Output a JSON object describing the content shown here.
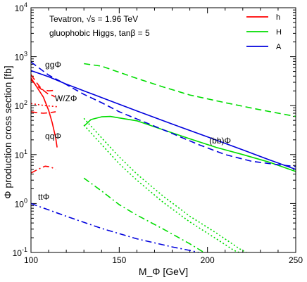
{
  "chart_data": {
    "type": "line",
    "title": "",
    "xlabel": "M_Φ [GeV]",
    "ylabel": "Φ production cross section [fb]",
    "xlim": [
      100,
      250
    ],
    "ylim": [
      0.1,
      10000
    ],
    "yscale": "log",
    "xticks": [
      100,
      150,
      200,
      250
    ],
    "yticks": [
      {
        "value": 0.1,
        "base": "10",
        "exp": "-1"
      },
      {
        "value": 1,
        "base": "10",
        "exp": "0"
      },
      {
        "value": 10,
        "base": "10",
        "exp": "1"
      },
      {
        "value": 100,
        "base": "10",
        "exp": "2"
      },
      {
        "value": 1000,
        "base": "10",
        "exp": "3"
      },
      {
        "value": 10000,
        "base": "10",
        "exp": "4"
      }
    ],
    "header_lines": [
      "Tevatron, √s = 1.96 TeV",
      "gluophobic Higgs, tanβ = 5"
    ],
    "legend": [
      {
        "label": "h",
        "color": "#ff0000"
      },
      {
        "label": "H",
        "color": "#00dd00"
      },
      {
        "label": "A",
        "color": "#0000dd"
      }
    ],
    "annotations": [
      {
        "text": "ggΦ",
        "x": 108,
        "y": 600
      },
      {
        "text": "W/ZΦ",
        "x": 113.5,
        "y": 123
      },
      {
        "text": "qqΦ",
        "x": 108,
        "y": 21
      },
      {
        "text": "(bb)Φ",
        "x": 201,
        "y": 17
      },
      {
        "text": "ttΦ",
        "x": 104,
        "y": 1.2
      }
    ],
    "series": [
      {
        "process": "ggΦ",
        "higgs": "h",
        "color": "#ff0000",
        "dash": "dash",
        "points": [
          [
            100,
            430
          ],
          [
            103,
            300
          ],
          [
            106,
            220
          ],
          [
            110,
            170
          ],
          [
            112.5,
            160
          ],
          [
            113.5,
            150
          ]
        ]
      },
      {
        "process": "ggΦ",
        "higgs": "h",
        "color": "#ff0000",
        "dash": "dash",
        "points": [
          [
            100,
            340
          ],
          [
            103,
            260
          ],
          [
            106,
            215
          ],
          [
            110,
            200
          ],
          [
            113.5,
            205
          ]
        ]
      },
      {
        "process": "W/ZΦ",
        "higgs": "h",
        "color": "#ff0000",
        "dash": "dot",
        "points": [
          [
            100,
            110
          ],
          [
            104,
            105
          ],
          [
            108,
            100
          ],
          [
            112,
            97
          ],
          [
            115,
            95
          ]
        ]
      },
      {
        "process": "W/ZΦ",
        "higgs": "h",
        "color": "#ff0000",
        "dash": "dash",
        "points": [
          [
            100,
            75
          ],
          [
            103,
            72
          ],
          [
            107,
            70
          ],
          [
            111,
            72
          ],
          [
            114,
            75
          ]
        ]
      },
      {
        "process": "qqΦ",
        "higgs": "h",
        "color": "#ff0000",
        "dash": "solid",
        "points": [
          [
            100,
            370
          ],
          [
            103,
            250
          ],
          [
            107,
            150
          ],
          [
            110,
            80
          ],
          [
            112,
            45
          ],
          [
            114,
            22
          ],
          [
            114.8,
            14
          ]
        ]
      },
      {
        "process": "qqΦ",
        "higgs": "h",
        "color": "#ff0000",
        "dash": "dashdot",
        "points": [
          [
            100,
            4.2
          ],
          [
            104,
            5.0
          ],
          [
            108,
            5.8
          ],
          [
            111,
            5.6
          ],
          [
            114,
            5.0
          ]
        ]
      },
      {
        "process": "ggΦ",
        "higgs": "H",
        "color": "#00dd00",
        "dash": "dash",
        "points": [
          [
            130,
            720
          ],
          [
            140,
            640
          ],
          [
            150,
            480
          ],
          [
            160,
            360
          ],
          [
            175,
            240
          ],
          [
            190,
            165
          ],
          [
            210,
            115
          ],
          [
            230,
            82
          ],
          [
            250,
            60
          ]
        ]
      },
      {
        "process": "(bb)Φ",
        "higgs": "H",
        "color": "#00dd00",
        "dash": "solid",
        "points": [
          [
            130,
            38
          ],
          [
            134,
            52
          ],
          [
            140,
            59
          ],
          [
            145,
            60
          ],
          [
            150,
            56
          ],
          [
            160,
            49
          ],
          [
            175,
            32
          ],
          [
            190,
            21
          ],
          [
            205,
            14
          ],
          [
            220,
            10
          ],
          [
            235,
            7
          ],
          [
            250,
            4.5
          ]
        ]
      },
      {
        "process": "W/ZΦ",
        "higgs": "H",
        "color": "#00dd00",
        "dash": "dot",
        "points": [
          [
            130,
            55
          ],
          [
            140,
            22
          ],
          [
            150,
            9
          ],
          [
            160,
            4
          ],
          [
            175,
            1.4
          ],
          [
            190,
            0.55
          ],
          [
            205,
            0.25
          ],
          [
            218,
            0.12
          ],
          [
            222,
            0.1
          ]
        ]
      },
      {
        "process": "W/ZΦ",
        "higgs": "H",
        "color": "#00dd00",
        "dash": "dot",
        "points": [
          [
            130,
            40
          ],
          [
            140,
            16
          ],
          [
            150,
            6.5
          ],
          [
            160,
            3
          ],
          [
            175,
            1.05
          ],
          [
            190,
            0.42
          ],
          [
            205,
            0.19
          ],
          [
            215,
            0.11
          ],
          [
            218,
            0.1
          ]
        ]
      },
      {
        "process": "qqΦ",
        "higgs": "H",
        "color": "#00dd00",
        "dash": "dashdot",
        "points": [
          [
            130,
            3.3
          ],
          [
            140,
            1.8
          ],
          [
            150,
            0.95
          ],
          [
            160,
            0.58
          ],
          [
            175,
            0.3
          ],
          [
            190,
            0.15
          ],
          [
            198,
            0.1
          ]
        ]
      },
      {
        "process": "ggΦ",
        "higgs": "A",
        "color": "#0000dd",
        "dash": "dash",
        "points": [
          [
            100,
            780
          ],
          [
            110,
            420
          ],
          [
            120,
            270
          ],
          [
            130,
            170
          ],
          [
            140,
            115
          ],
          [
            150,
            75
          ],
          [
            165,
            45
          ],
          [
            180,
            27
          ],
          [
            195,
            16
          ],
          [
            210,
            10
          ],
          [
            225,
            7.3
          ],
          [
            240,
            6.2
          ],
          [
            250,
            5.7
          ]
        ]
      },
      {
        "process": "(bb)Φ",
        "higgs": "A",
        "color": "#0000dd",
        "dash": "solid",
        "points": [
          [
            100,
            520
          ],
          [
            110,
            390
          ],
          [
            120,
            275
          ],
          [
            130,
            200
          ],
          [
            145,
            125
          ],
          [
            160,
            78
          ],
          [
            180,
            42
          ],
          [
            200,
            23
          ],
          [
            220,
            12.5
          ],
          [
            235,
            7.8
          ],
          [
            250,
            5
          ]
        ]
      },
      {
        "process": "ttΦ",
        "higgs": "A",
        "color": "#0000dd",
        "dash": "dashdot",
        "points": [
          [
            100,
            1.0
          ],
          [
            120,
            0.55
          ],
          [
            140,
            0.31
          ],
          [
            160,
            0.19
          ],
          [
            180,
            0.13
          ],
          [
            190,
            0.11
          ],
          [
            195,
            0.1
          ]
        ]
      }
    ]
  }
}
